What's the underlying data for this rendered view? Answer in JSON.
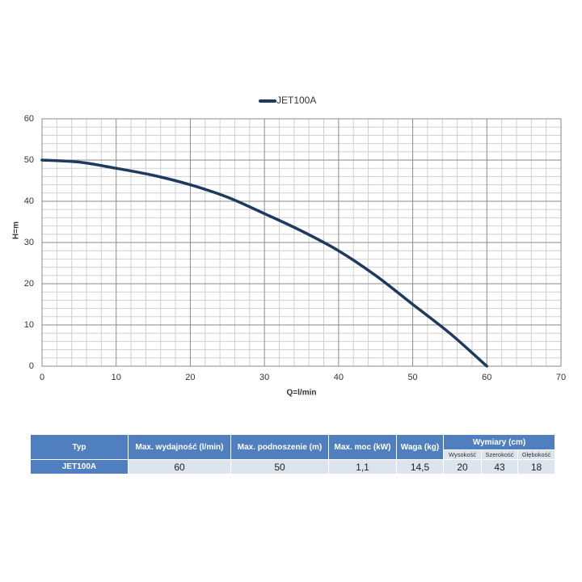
{
  "chart_data": {
    "type": "line",
    "x_label": "Q=l/min",
    "y_label": "H=m",
    "x": [
      0,
      5,
      10,
      15,
      20,
      25,
      30,
      35,
      40,
      45,
      50,
      55,
      60
    ],
    "series": [
      {
        "name": "JET100A",
        "color": "#1f3a5f",
        "values": [
          50,
          49.5,
          48,
          46.3,
          44,
          41,
          37,
          32.8,
          28,
          22,
          15,
          8,
          0
        ]
      }
    ],
    "xlim": [
      0,
      70
    ],
    "xticks": [
      0,
      10,
      20,
      30,
      40,
      50,
      60,
      70
    ],
    "ylim": [
      0,
      60
    ],
    "yticks": [
      0,
      10,
      20,
      30,
      40,
      50,
      60
    ],
    "grid": true,
    "minor_grid_divisions": 5,
    "legend": "top"
  },
  "table": {
    "header": [
      "Typ",
      "Max. wydajność (l/min)",
      "Max. podnoszenie (m)",
      "Max. moc (kW)",
      "Waga (kg)",
      "Wymiary (cm)"
    ],
    "subheader": [
      "Wysokość",
      "Szerokość",
      "Głębokość"
    ],
    "rows": [
      [
        "JET100A",
        "60",
        "50",
        "1,1",
        "14,5",
        "20",
        "43",
        "18"
      ]
    ]
  }
}
